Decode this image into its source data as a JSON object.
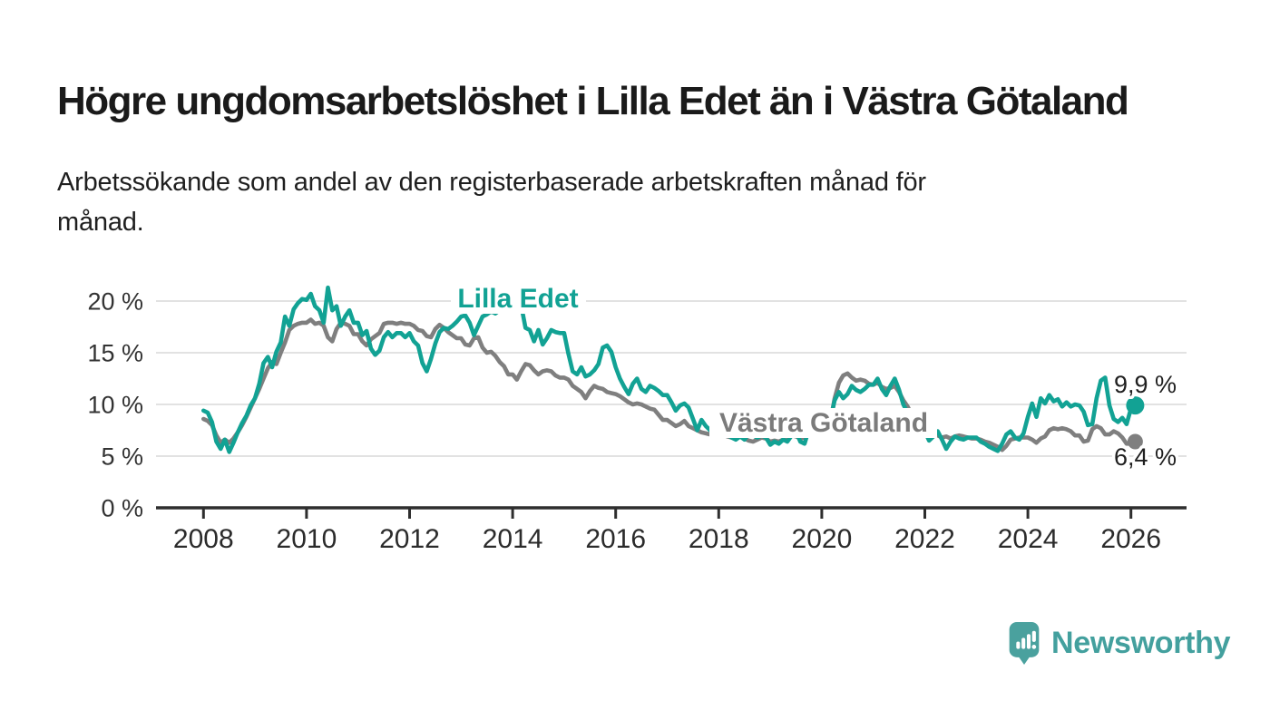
{
  "header": {
    "title": "Högre ungdomsarbetslöshet i Lilla Edet än i Västra Götaland",
    "subtitle": "Arbetssökande som andel av den registerbaserade arbetskraften månad för månad."
  },
  "footer": {
    "brand": "Newsworthy",
    "logo_icon": "bar-chart-speech-bubble-icon"
  },
  "colors": {
    "lilla_edet": "#12a294",
    "vastra_gotaland": "#7f7f7f",
    "gridline": "#d8d8d8",
    "axis": "#2e2e2e",
    "tick_label": "#2b2b2b",
    "annotation_text": "#1f1f1f",
    "label_halo": "#ffffff",
    "logo_teal": "#4aa19e"
  },
  "chart_data": {
    "type": "line",
    "title": "Högre ungdomsarbetslöshet i Lilla Edet än i Västra Götaland",
    "subtitle": "Arbetssökande som andel av den registerbaserade arbetskraften månad för månad.",
    "unit": "%",
    "frequency": "monthly",
    "grid": true,
    "xlim": [
      2007.08,
      2027.08
    ],
    "ylim": [
      0,
      21.49
    ],
    "x_ticks": [
      {
        "value": 2008,
        "label": "2008"
      },
      {
        "value": 2010,
        "label": "2010"
      },
      {
        "value": 2012,
        "label": "2012"
      },
      {
        "value": 2014,
        "label": "2014"
      },
      {
        "value": 2016,
        "label": "2016"
      },
      {
        "value": 2018,
        "label": "2018"
      },
      {
        "value": 2020,
        "label": "2020"
      },
      {
        "value": 2022,
        "label": "2022"
      },
      {
        "value": 2024,
        "label": "2024"
      },
      {
        "value": 2026,
        "label": "2026"
      }
    ],
    "y_ticks": [
      {
        "value": 0,
        "label": "0 %"
      },
      {
        "value": 5,
        "label": "5 %"
      },
      {
        "value": 10,
        "label": "10 %"
      },
      {
        "value": 15,
        "label": "15 %"
      },
      {
        "value": 20,
        "label": "20 %"
      }
    ],
    "series": [
      {
        "name": "Lilla Edet",
        "color": "#12a294",
        "start_year": 2008.0,
        "step_months": 1,
        "end_label": "9,9 %",
        "end_value": 9.9,
        "values": [
          9.4,
          9.2,
          8.3,
          6.4,
          5.7,
          6.6,
          5.4,
          6.3,
          7.3,
          8.2,
          8.9,
          9.9,
          10.6,
          12.0,
          14.0,
          14.6,
          13.6,
          15.1,
          16.0,
          18.5,
          17.6,
          19.2,
          19.8,
          20.2,
          20.1,
          20.7,
          19.5,
          19.1,
          17.9,
          21.3,
          19.1,
          19.5,
          17.6,
          18.5,
          19.1,
          17.9,
          17.9,
          16.7,
          17.1,
          15.4,
          14.8,
          15.2,
          16.5,
          17.0,
          16.5,
          16.9,
          16.9,
          16.5,
          16.9,
          16.1,
          15.7,
          14.0,
          13.2,
          14.4,
          15.9,
          17.0,
          17.4,
          17.3,
          17.6,
          18.0,
          18.5,
          18.6,
          17.9,
          16.7,
          17.6,
          18.5,
          18.7,
          19.0,
          18.8,
          19.1,
          19.4,
          19.6,
          19.8,
          19.9,
          19.6,
          17.4,
          17.2,
          16.1,
          17.2,
          15.8,
          16.4,
          17.2,
          17.0,
          16.9,
          16.9,
          14.9,
          13.2,
          12.9,
          13.6,
          12.7,
          12.9,
          13.3,
          13.9,
          15.5,
          15.7,
          15.1,
          13.6,
          12.5,
          11.7,
          11.0,
          12.0,
          12.5,
          11.5,
          11.2,
          11.8,
          11.6,
          11.3,
          10.9,
          10.9,
          10.2,
          9.4,
          9.9,
          10.1,
          9.7,
          8.6,
          7.5,
          8.5,
          7.9,
          7.5,
          7.2,
          7.2,
          7.4,
          7.1,
          6.8,
          6.6,
          6.9,
          6.6,
          7.2,
          7.0,
          6.8,
          7.0,
          6.8,
          6.1,
          6.4,
          6.2,
          6.6,
          6.4,
          7.0,
          7.4,
          6.4,
          6.2,
          7.6,
          7.3,
          7.2,
          7.6,
          7.4,
          8.5,
          10.4,
          11.2,
          10.6,
          11.0,
          11.8,
          11.4,
          11.2,
          11.5,
          11.9,
          11.9,
          12.5,
          11.5,
          10.9,
          11.8,
          12.5,
          11.4,
          10.0,
          9.2,
          8.2,
          7.6,
          7.4,
          7.4,
          6.5,
          6.9,
          7.4,
          6.6,
          5.7,
          6.4,
          6.9,
          6.7,
          6.6,
          6.8,
          6.8,
          6.8,
          6.4,
          6.2,
          5.9,
          5.7,
          5.5,
          6.2,
          7.1,
          7.4,
          6.8,
          6.6,
          7.2,
          8.8,
          10.1,
          8.8,
          10.6,
          10.1,
          10.9,
          10.3,
          10.5,
          9.8,
          10.2,
          9.8,
          10.0,
          9.9,
          9.3,
          8.0,
          8.1,
          10.6,
          12.3,
          12.6,
          9.9,
          8.6,
          8.3,
          8.7,
          8.1,
          9.6,
          9.9
        ]
      },
      {
        "name": "Västra Götaland",
        "color": "#7f7f7f",
        "start_year": 2008.0,
        "step_months": 1,
        "end_label": "6,4 %",
        "end_value": 6.4,
        "values": [
          8.6,
          8.4,
          8.0,
          7.0,
          6.3,
          6.6,
          6.3,
          6.7,
          7.3,
          8.0,
          8.8,
          9.7,
          10.6,
          11.5,
          12.5,
          13.5,
          14.1,
          13.9,
          15.0,
          16.0,
          17.2,
          17.6,
          17.8,
          17.9,
          17.9,
          18.2,
          17.8,
          17.9,
          17.6,
          16.5,
          16.1,
          17.3,
          17.9,
          17.8,
          17.6,
          16.8,
          16.8,
          16.1,
          15.7,
          16.3,
          16.6,
          16.9,
          17.8,
          17.9,
          17.9,
          17.8,
          17.9,
          17.8,
          17.8,
          17.6,
          17.2,
          17.1,
          16.6,
          16.5,
          17.3,
          17.7,
          17.4,
          17.0,
          16.7,
          16.4,
          16.4,
          15.8,
          15.7,
          16.4,
          16.5,
          15.5,
          15.0,
          15.1,
          14.7,
          14.1,
          13.7,
          12.9,
          12.9,
          12.4,
          13.2,
          13.9,
          13.8,
          13.3,
          12.9,
          13.2,
          13.3,
          13.2,
          12.8,
          12.6,
          12.6,
          12.4,
          11.8,
          11.5,
          11.2,
          10.6,
          11.3,
          11.8,
          11.6,
          11.5,
          11.2,
          11.1,
          11.0,
          10.8,
          10.5,
          10.2,
          10.0,
          10.1,
          10.0,
          9.8,
          9.6,
          9.5,
          9.0,
          8.5,
          8.5,
          8.2,
          7.9,
          8.1,
          8.4,
          7.9,
          7.7,
          7.5,
          7.3,
          7.2,
          7.1,
          7.2,
          7.2,
          7.1,
          6.9,
          6.8,
          6.7,
          6.9,
          6.7,
          6.5,
          6.4,
          6.6,
          6.8,
          6.7,
          6.4,
          6.5,
          6.4,
          6.6,
          6.7,
          7.0,
          6.9,
          6.7,
          6.8,
          7.0,
          7.1,
          7.2,
          7.3,
          7.5,
          8.3,
          10.6,
          12.1,
          12.8,
          13.0,
          12.6,
          12.3,
          12.4,
          12.3,
          12.0,
          11.9,
          12.1,
          11.7,
          11.5,
          11.6,
          11.8,
          11.2,
          10.4,
          9.8,
          9.0,
          8.3,
          7.8,
          7.6,
          7.3,
          7.2,
          7.0,
          6.8,
          6.9,
          6.7,
          6.9,
          7.0,
          6.9,
          6.8,
          6.7,
          6.7,
          6.6,
          6.4,
          6.3,
          6.1,
          5.9,
          5.6,
          6.0,
          6.6,
          6.7,
          6.8,
          6.8,
          6.8,
          6.6,
          6.3,
          6.7,
          6.9,
          7.5,
          7.7,
          7.6,
          7.7,
          7.6,
          7.4,
          7.0,
          7.0,
          6.4,
          6.5,
          7.6,
          7.9,
          7.7,
          7.1,
          7.1,
          7.4,
          7.2,
          6.8,
          6.2,
          6.2,
          6.4
        ]
      }
    ],
    "legend_position": "inline-labels",
    "annotations": [
      "9,9 %",
      "6,4 %"
    ]
  }
}
